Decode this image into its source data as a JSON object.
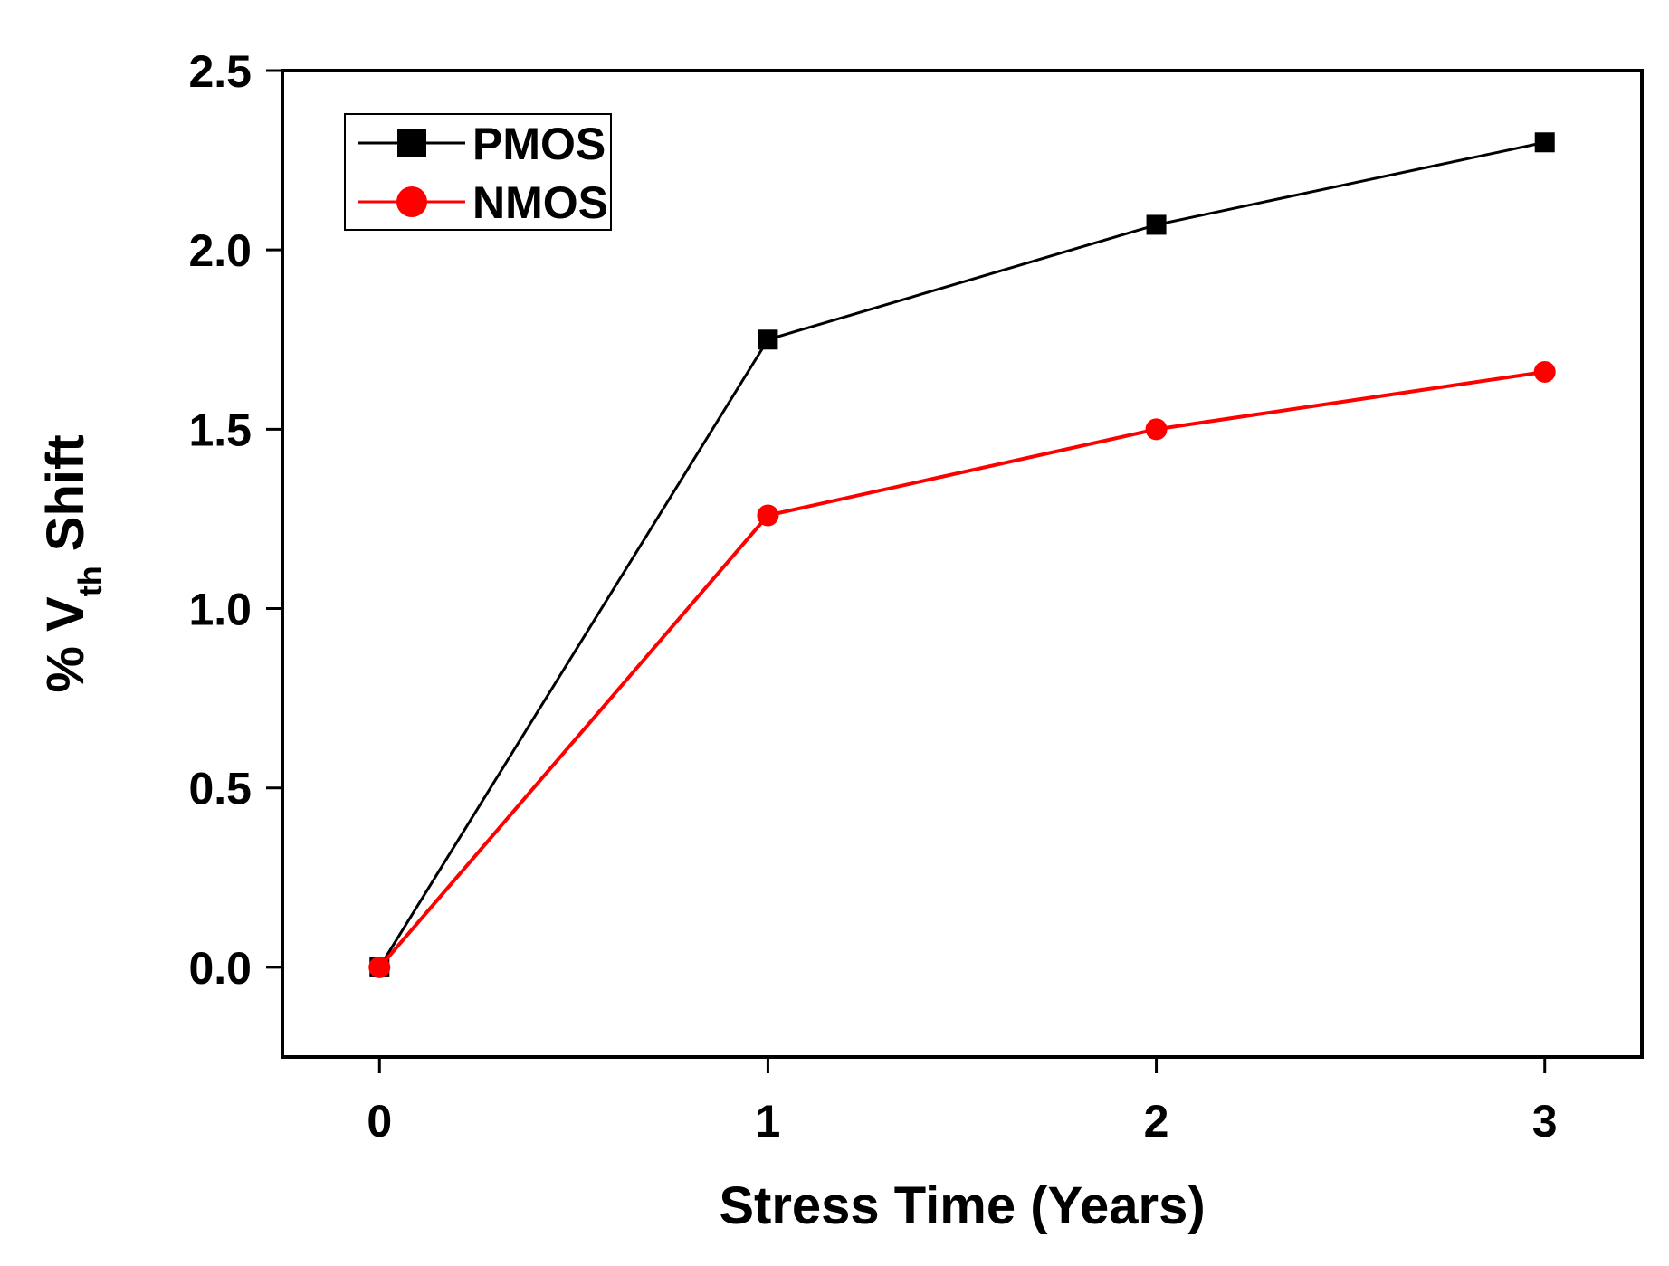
{
  "chart_data": {
    "type": "line",
    "title": "",
    "xlabel": "Stress Time (Years)",
    "ylabel": {
      "prefix": "% V",
      "subscript": "th",
      "suffix": " Shift"
    },
    "x": [
      0,
      1,
      2,
      3
    ],
    "xlim": [
      -0.25,
      3.25
    ],
    "ylim": [
      -0.25,
      2.5
    ],
    "x_ticks": [
      0,
      1,
      2,
      3
    ],
    "x_tick_labels": [
      "0",
      "1",
      "2",
      "3"
    ],
    "y_ticks": [
      0.0,
      0.5,
      1.0,
      1.5,
      2.0,
      2.5
    ],
    "y_tick_labels": [
      "0.0",
      "0.5",
      "1.0",
      "1.5",
      "2.0",
      "2.5"
    ],
    "grid": false,
    "legend_position": "top-left",
    "series": [
      {
        "name": "PMOS",
        "color": "#000000",
        "marker": "square",
        "values": [
          0.0,
          1.75,
          2.07,
          2.3
        ]
      },
      {
        "name": "NMOS",
        "color": "#ff0000",
        "marker": "circle",
        "values": [
          0.0,
          1.26,
          1.5,
          1.66
        ]
      }
    ]
  }
}
